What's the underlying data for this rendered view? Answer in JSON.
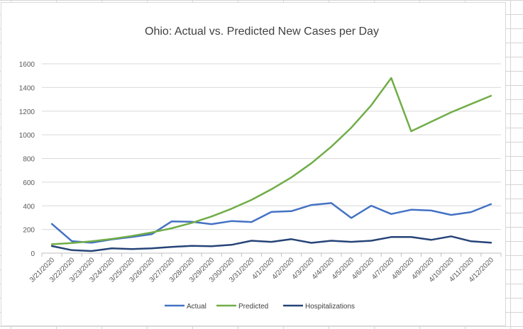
{
  "chart_data": {
    "type": "line",
    "title": "Ohio: Actual vs. Predicted New Cases per Day",
    "xlabel": "",
    "ylabel": "",
    "categories": [
      "3/21/2020",
      "3/22/2020",
      "3/23/2020",
      "3/24/2020",
      "3/25/2020",
      "3/26/2020",
      "3/27/2020",
      "3/28/2020",
      "3/29/2020",
      "3/30/2020",
      "3/31/2020",
      "4/1/2020",
      "4/2/2020",
      "4/3/2020",
      "4/4/2020",
      "4/5/2020",
      "4/6/2020",
      "4/7/2020",
      "4/8/2020",
      "4/9/2020",
      "4/10/2020",
      "4/11/2020",
      "4/12/2020"
    ],
    "ylim": [
      0,
      1600
    ],
    "yticks": [
      "0",
      "200",
      "400",
      "600",
      "800",
      "1000",
      "1200",
      "1400",
      "1600"
    ],
    "grid": true,
    "legend_position": "bottom",
    "series": [
      {
        "name": "Actual",
        "color": "#4472c4",
        "values": [
          247,
          101,
          88,
          116,
          136,
          160,
          268,
          265,
          245,
          271,
          263,
          348,
          355,
          407,
          423,
          297,
          401,
          331,
          367,
          360,
          323,
          347,
          414
        ]
      },
      {
        "name": "Predicted",
        "color": "#70ad47",
        "values": [
          75,
          85,
          100,
          120,
          145,
          175,
          210,
          255,
          310,
          375,
          450,
          540,
          640,
          760,
          900,
          1060,
          1250,
          1480,
          1030,
          1110,
          1190,
          1260,
          1330
        ]
      },
      {
        "name": "Hospitalizations",
        "color": "#264478",
        "values": [
          60,
          25,
          18,
          40,
          35,
          40,
          52,
          62,
          58,
          70,
          105,
          95,
          118,
          87,
          105,
          95,
          105,
          136,
          136,
          112,
          142,
          100,
          88
        ]
      }
    ]
  }
}
